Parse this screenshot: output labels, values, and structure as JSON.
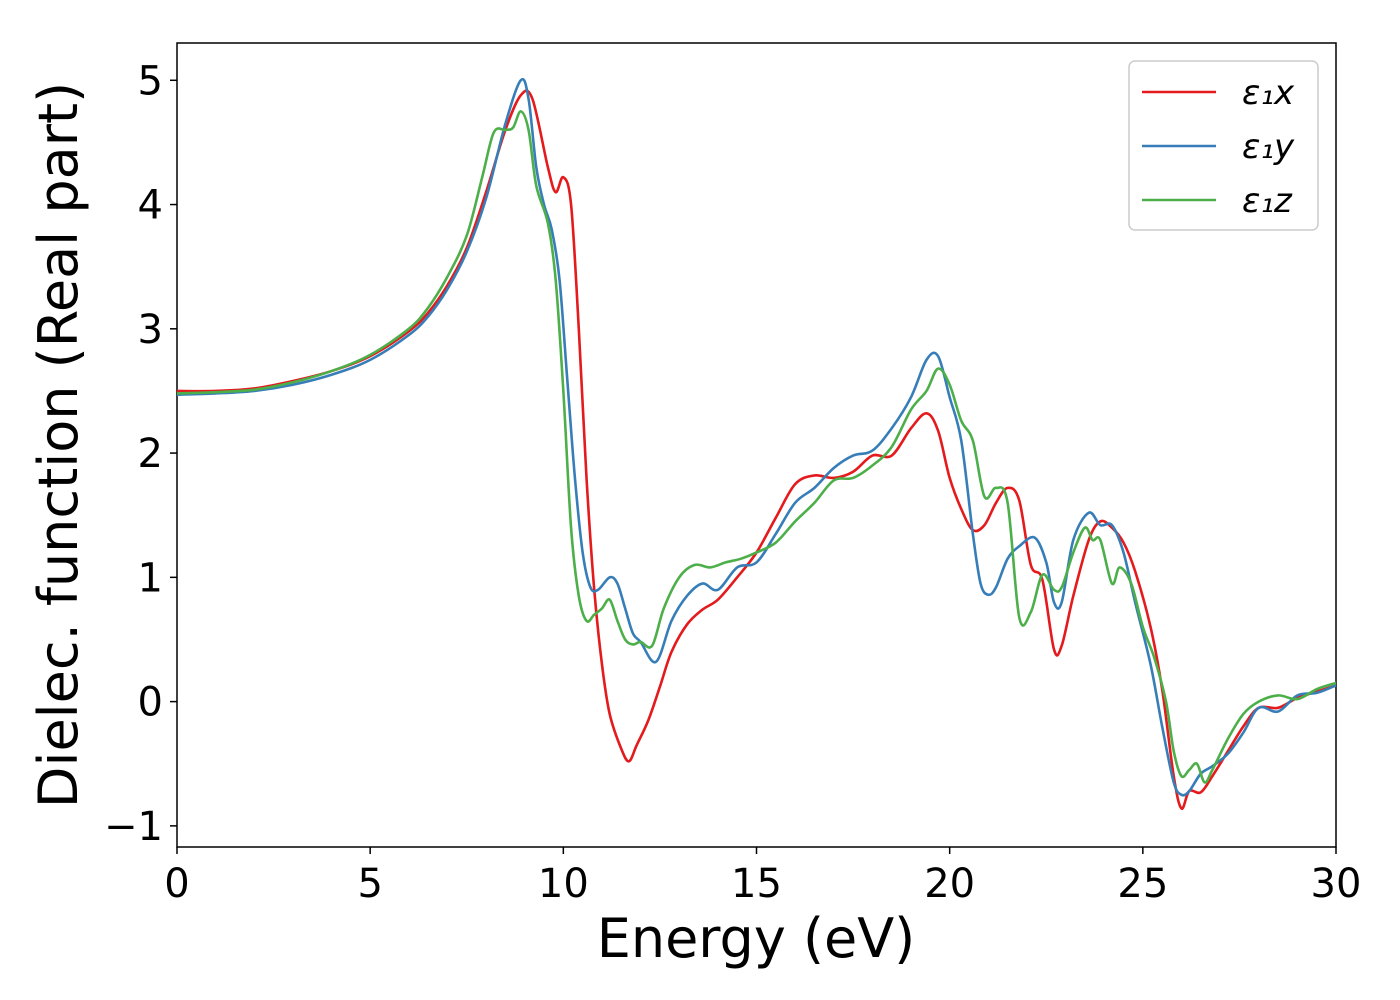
{
  "chart_data": {
    "type": "line",
    "title": "",
    "xlabel": "Energy (eV)",
    "ylabel": "Dielec. function (Real part)",
    "xlim": [
      0,
      30
    ],
    "ylim": [
      -1.17,
      5.3
    ],
    "xticks": [
      0,
      5,
      10,
      15,
      20,
      25,
      30
    ],
    "yticks": [
      -1,
      0,
      1,
      2,
      3,
      4,
      5
    ],
    "xtick_labels": [
      "0",
      "5",
      "10",
      "15",
      "20",
      "25",
      "30"
    ],
    "ytick_labels": [
      "−1",
      "0",
      "1",
      "2",
      "3",
      "4",
      "5"
    ],
    "grid": false,
    "legend": "top-right",
    "series": [
      {
        "name": "ε₁x",
        "color": "#e41a1c",
        "x": [
          0,
          1,
          2,
          3,
          4,
          5,
          6,
          6.5,
          7,
          7.5,
          8,
          8.5,
          8.9,
          9.2,
          9.6,
          9.8,
          10.0,
          10.2,
          10.4,
          10.6,
          10.8,
          11.0,
          11.2,
          11.5,
          11.7,
          11.9,
          12.2,
          12.5,
          12.8,
          13.2,
          13.6,
          14.0,
          14.5,
          15.0,
          15.5,
          16.0,
          16.5,
          17.0,
          17.5,
          18.0,
          18.5,
          19.0,
          19.4,
          19.7,
          20.0,
          20.3,
          20.6,
          20.9,
          21.2,
          21.5,
          21.8,
          22.1,
          22.4,
          22.7,
          22.9,
          23.2,
          23.6,
          23.9,
          24.2,
          24.5,
          24.8,
          25.2,
          25.5,
          25.8,
          26.0,
          26.2,
          26.5,
          26.8,
          27.2,
          27.6,
          28.0,
          28.5,
          29.0,
          29.5,
          30.0
        ],
        "y": [
          2.5,
          2.5,
          2.52,
          2.58,
          2.66,
          2.78,
          2.98,
          3.13,
          3.35,
          3.65,
          4.1,
          4.6,
          4.88,
          4.85,
          4.3,
          4.1,
          4.22,
          4.0,
          3.0,
          1.8,
          0.9,
          0.3,
          -0.1,
          -0.38,
          -0.48,
          -0.35,
          -0.15,
          0.12,
          0.4,
          0.62,
          0.74,
          0.82,
          1.0,
          1.2,
          1.48,
          1.75,
          1.82,
          1.8,
          1.85,
          1.98,
          1.98,
          2.2,
          2.32,
          2.18,
          1.8,
          1.55,
          1.38,
          1.42,
          1.6,
          1.72,
          1.62,
          1.1,
          0.98,
          0.42,
          0.45,
          0.85,
          1.3,
          1.45,
          1.4,
          1.28,
          1.05,
          0.6,
          0.1,
          -0.6,
          -0.86,
          -0.72,
          -0.73,
          -0.6,
          -0.4,
          -0.2,
          -0.05,
          -0.05,
          0.03,
          0.08,
          0.13
        ]
      },
      {
        "name": "ε₁y",
        "color": "#377eb8",
        "x": [
          0,
          1,
          2,
          3,
          4,
          5,
          6,
          6.5,
          7,
          7.5,
          8,
          8.5,
          8.9,
          9.1,
          9.3,
          9.5,
          9.7,
          9.9,
          10.1,
          10.3,
          10.5,
          10.7,
          10.9,
          11.2,
          11.4,
          11.6,
          11.8,
          12.0,
          12.4,
          12.8,
          13.2,
          13.6,
          14.0,
          14.5,
          15.0,
          15.5,
          16.0,
          16.5,
          17.0,
          17.5,
          18.0,
          18.5,
          19.0,
          19.4,
          19.7,
          20.0,
          20.3,
          20.6,
          20.8,
          21.0,
          21.2,
          21.5,
          21.8,
          22.2,
          22.5,
          22.7,
          22.9,
          23.2,
          23.6,
          23.9,
          24.2,
          24.5,
          24.8,
          25.2,
          25.5,
          25.8,
          26.0,
          26.2,
          26.5,
          26.8,
          27.2,
          27.6,
          28.0,
          28.5,
          29.0,
          29.5,
          30.0
        ],
        "y": [
          2.47,
          2.48,
          2.5,
          2.55,
          2.63,
          2.75,
          2.95,
          3.1,
          3.32,
          3.62,
          4.05,
          4.65,
          5.0,
          4.85,
          4.3,
          4.0,
          3.8,
          3.4,
          2.6,
          1.8,
          1.2,
          0.92,
          0.9,
          1.0,
          0.95,
          0.75,
          0.55,
          0.48,
          0.32,
          0.65,
          0.85,
          0.95,
          0.9,
          1.08,
          1.12,
          1.35,
          1.6,
          1.72,
          1.88,
          1.98,
          2.02,
          2.2,
          2.45,
          2.75,
          2.78,
          2.45,
          2.1,
          1.35,
          0.95,
          0.86,
          0.92,
          1.15,
          1.25,
          1.32,
          1.12,
          0.8,
          0.8,
          1.3,
          1.52,
          1.42,
          1.42,
          1.2,
          0.8,
          0.3,
          -0.2,
          -0.65,
          -0.75,
          -0.72,
          -0.58,
          -0.52,
          -0.42,
          -0.25,
          -0.05,
          -0.08,
          0.05,
          0.07,
          0.13
        ]
      },
      {
        "name": "ε₁z",
        "color": "#4daf4a",
        "x": [
          0,
          1,
          2,
          3,
          4,
          5,
          6,
          6.5,
          7,
          7.5,
          7.9,
          8.2,
          8.5,
          8.7,
          8.9,
          9.1,
          9.3,
          9.6,
          9.8,
          10.0,
          10.2,
          10.4,
          10.6,
          10.8,
          11.0,
          11.2,
          11.4,
          11.6,
          11.8,
          12.0,
          12.3,
          12.6,
          13.0,
          13.4,
          13.8,
          14.2,
          14.6,
          15.0,
          15.5,
          16.0,
          16.5,
          17.0,
          17.5,
          18.0,
          18.5,
          19.0,
          19.4,
          19.7,
          20.0,
          20.3,
          20.6,
          20.9,
          21.2,
          21.5,
          21.8,
          22.1,
          22.4,
          22.7,
          22.9,
          23.2,
          23.5,
          23.7,
          23.9,
          24.2,
          24.4,
          24.7,
          25.0,
          25.3,
          25.6,
          25.8,
          26.0,
          26.2,
          26.4,
          26.6,
          26.8,
          27.2,
          27.6,
          28.0,
          28.5,
          29.0,
          29.5,
          30.0
        ],
        "y": [
          2.48,
          2.49,
          2.51,
          2.57,
          2.66,
          2.79,
          3.0,
          3.17,
          3.42,
          3.75,
          4.22,
          4.58,
          4.6,
          4.62,
          4.75,
          4.6,
          4.15,
          3.85,
          3.4,
          2.5,
          1.4,
          0.85,
          0.65,
          0.7,
          0.75,
          0.82,
          0.65,
          0.5,
          0.46,
          0.48,
          0.45,
          0.75,
          1.0,
          1.1,
          1.08,
          1.12,
          1.15,
          1.2,
          1.28,
          1.45,
          1.6,
          1.78,
          1.8,
          1.9,
          2.05,
          2.35,
          2.5,
          2.68,
          2.55,
          2.26,
          2.1,
          1.65,
          1.72,
          1.6,
          0.68,
          0.72,
          1.02,
          0.9,
          0.92,
          1.2,
          1.4,
          1.3,
          1.3,
          0.95,
          1.08,
          0.95,
          0.6,
          0.35,
          0.0,
          -0.4,
          -0.6,
          -0.55,
          -0.5,
          -0.65,
          -0.55,
          -0.3,
          -0.1,
          0.0,
          0.05,
          0.02,
          0.1,
          0.15
        ]
      }
    ]
  }
}
